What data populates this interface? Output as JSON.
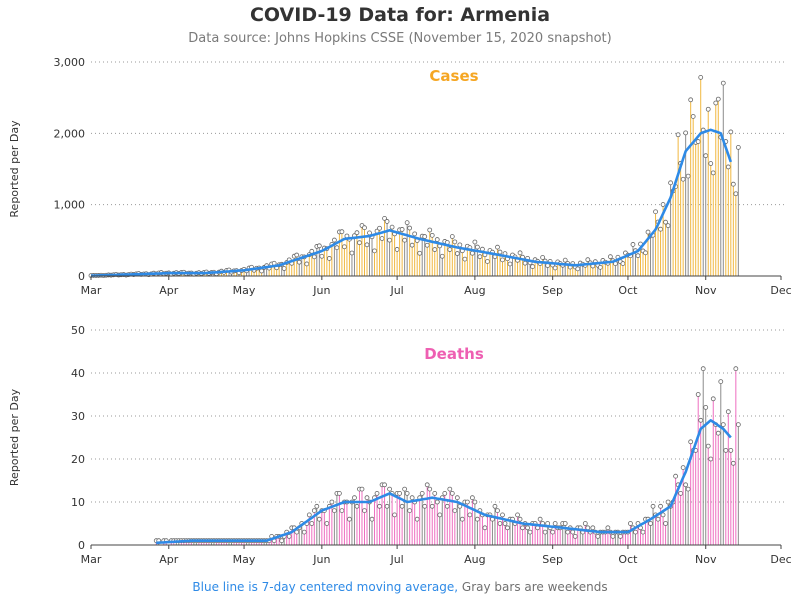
{
  "title": "COVID-19 Data for: Armenia",
  "subtitle": "Data source: Johns Hopkins CSSE (November 15, 2020 snapshot)",
  "footnote": {
    "blue_part": "Blue line is 7-day centered moving average,",
    "gray_part": " Gray bars are weekends",
    "blue_color": "#2e8ae6",
    "gray_color": "#707070"
  },
  "colors": {
    "cases_bar": "#f0b840",
    "deaths_bar": "#ee6ec0",
    "weekend_bar": "#8c8c8c",
    "moving_average": "#2e8ae6",
    "cases_title": "#f5a623",
    "deaths_title": "#ee5fb2"
  },
  "chart_data": [
    {
      "type": "bar",
      "panel_title": "Cases",
      "ylabel": "Reported per Day",
      "ylim": [
        0,
        3000
      ],
      "yticks": [
        0,
        1000,
        2000,
        3000
      ],
      "ytick_labels": [
        "0",
        "1,000",
        "2,000",
        "3,000"
      ],
      "xlim": [
        "2020-03-01",
        "2020-12-01"
      ],
      "xtick_labels": [
        "Mar",
        "Apr",
        "May",
        "Jun",
        "Jul",
        "Aug",
        "Sep",
        "Oct",
        "Nov",
        "Dec"
      ],
      "grid": "horizontal dotted",
      "start_date": "2020-03-01",
      "end_date": "2020-11-14",
      "daily_estimated_trend": {
        "dates": [
          "2020-03-01",
          "2020-03-15",
          "2020-04-01",
          "2020-04-15",
          "2020-05-01",
          "2020-05-15",
          "2020-06-01",
          "2020-06-10",
          "2020-06-20",
          "2020-06-28",
          "2020-07-10",
          "2020-07-25",
          "2020-08-10",
          "2020-08-25",
          "2020-09-10",
          "2020-09-25",
          "2020-10-05",
          "2020-10-12",
          "2020-10-18",
          "2020-10-24",
          "2020-10-30",
          "2020-11-03",
          "2020-11-07",
          "2020-11-12",
          "2020-11-14"
        ],
        "values": [
          5,
          20,
          40,
          40,
          80,
          150,
          350,
          520,
          560,
          640,
          520,
          400,
          300,
          200,
          150,
          200,
          350,
          650,
          1100,
          1750,
          2000,
          2050,
          2000,
          1700,
          1500
        ]
      },
      "moving_average": {
        "dates": [
          "2020-03-01",
          "2020-03-15",
          "2020-04-01",
          "2020-04-15",
          "2020-05-01",
          "2020-05-15",
          "2020-06-01",
          "2020-06-10",
          "2020-06-20",
          "2020-06-28",
          "2020-07-10",
          "2020-07-25",
          "2020-08-10",
          "2020-08-25",
          "2020-09-10",
          "2020-09-25",
          "2020-10-05",
          "2020-10-12",
          "2020-10-18",
          "2020-10-24",
          "2020-10-30",
          "2020-11-03",
          "2020-11-07",
          "2020-11-11"
        ],
        "values": [
          5,
          20,
          40,
          40,
          80,
          150,
          350,
          520,
          560,
          640,
          520,
          400,
          300,
          200,
          150,
          200,
          350,
          650,
          1100,
          1750,
          2000,
          2050,
          2000,
          1600
        ]
      },
      "peaks": [
        {
          "date": "2020-10-26",
          "value": 2470
        },
        {
          "date": "2020-11-06",
          "value": 2480
        }
      ]
    },
    {
      "type": "bar",
      "panel_title": "Deaths",
      "ylabel": "Reported per Day",
      "ylim": [
        0,
        50
      ],
      "yticks": [
        0,
        10,
        20,
        30,
        40,
        50
      ],
      "ytick_labels": [
        "0",
        "10",
        "20",
        "30",
        "40",
        "50"
      ],
      "xlim": [
        "2020-03-01",
        "2020-12-01"
      ],
      "xtick_labels": [
        "Mar",
        "Apr",
        "May",
        "Jun",
        "Jul",
        "Aug",
        "Sep",
        "Oct",
        "Nov",
        "Dec"
      ],
      "grid": "horizontal dotted",
      "start_date": "2020-03-27",
      "end_date": "2020-11-14",
      "daily_estimated_trend": {
        "dates": [
          "2020-03-27",
          "2020-04-10",
          "2020-04-25",
          "2020-05-10",
          "2020-05-20",
          "2020-06-01",
          "2020-06-10",
          "2020-06-20",
          "2020-06-28",
          "2020-07-05",
          "2020-07-15",
          "2020-07-25",
          "2020-08-05",
          "2020-08-20",
          "2020-09-05",
          "2020-09-20",
          "2020-10-01",
          "2020-10-10",
          "2020-10-18",
          "2020-10-24",
          "2020-10-30",
          "2020-11-03",
          "2020-11-08",
          "2020-11-14"
        ],
        "values": [
          0.5,
          1,
          1,
          1,
          3,
          8,
          10,
          10,
          12,
          10,
          11,
          10,
          7,
          5,
          4,
          3,
          3,
          6,
          9,
          17,
          27,
          29,
          27,
          28
        ]
      },
      "moving_average": {
        "dates": [
          "2020-03-27",
          "2020-04-10",
          "2020-04-25",
          "2020-05-10",
          "2020-05-20",
          "2020-06-01",
          "2020-06-10",
          "2020-06-20",
          "2020-06-28",
          "2020-07-05",
          "2020-07-15",
          "2020-07-25",
          "2020-08-05",
          "2020-08-20",
          "2020-09-05",
          "2020-09-20",
          "2020-10-01",
          "2020-10-10",
          "2020-10-18",
          "2020-10-24",
          "2020-10-30",
          "2020-11-03",
          "2020-11-08",
          "2020-11-11"
        ],
        "values": [
          0.5,
          1,
          1,
          1,
          3,
          8,
          10,
          10,
          12,
          10,
          11,
          10,
          7,
          5,
          4,
          3,
          3,
          6,
          9,
          17,
          27,
          29,
          27,
          25
        ]
      },
      "peaks": [
        {
          "date": "2020-10-31",
          "value": 41
        },
        {
          "date": "2020-11-13",
          "value": 41
        }
      ]
    }
  ]
}
